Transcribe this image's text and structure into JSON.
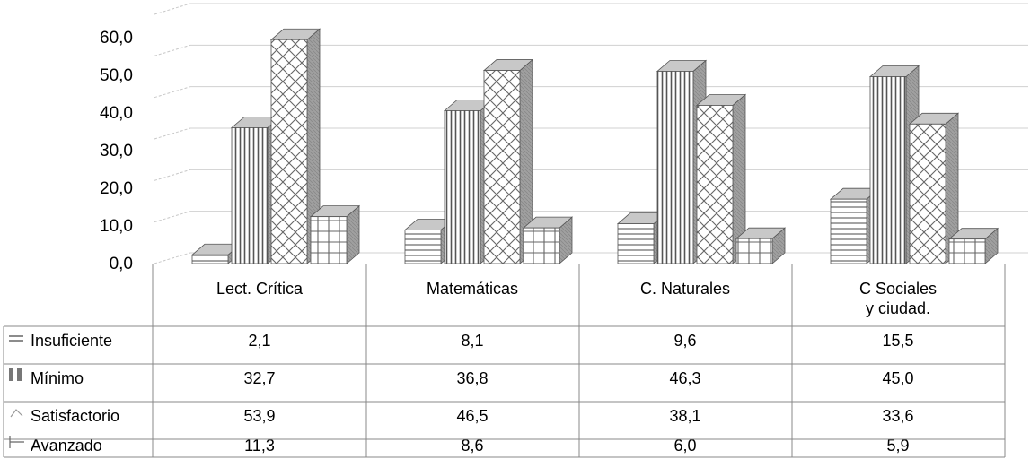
{
  "chart_data": {
    "type": "bar",
    "categories": [
      "Lect. Crítica",
      "Matemáticas",
      "C. Naturales",
      "C Sociales y ciudad."
    ],
    "series": [
      {
        "name": "Insuficiente",
        "values": [
          2.1,
          8.1,
          9.6,
          15.5
        ],
        "pattern": "horizontal-lines"
      },
      {
        "name": "Mínimo",
        "values": [
          32.7,
          36.8,
          46.3,
          45.0
        ],
        "pattern": "vertical-lines"
      },
      {
        "name": "Satisfactorio",
        "values": [
          53.9,
          46.5,
          38.1,
          33.6
        ],
        "pattern": "diagonal-cross"
      },
      {
        "name": "Avanzado",
        "values": [
          11.3,
          8.6,
          6.0,
          5.9
        ],
        "pattern": "grid"
      }
    ],
    "value_labels": [
      [
        "2,1",
        "8,1",
        "9,6",
        "15,5"
      ],
      [
        "32,7",
        "36,8",
        "46,3",
        "45,0"
      ],
      [
        "53,9",
        "46,5",
        "38,1",
        "33,6"
      ],
      [
        "11,3",
        "8,6",
        "6,0",
        "5,9"
      ]
    ],
    "y_ticks": [
      "0,0",
      "10,0",
      "20,0",
      "30,0",
      "40,0",
      "50,0",
      "60,0"
    ],
    "ylim": [
      0,
      60
    ],
    "grid": true,
    "three_d": true,
    "data_table": true,
    "title": "",
    "xlabel": "",
    "ylabel": "",
    "colors": {
      "bar_face": "#ffffff",
      "bar_stroke": "#555555",
      "bar_side": "#9a9a9a",
      "bar_top": "#c8c8c8",
      "grid": "#d0d0d0"
    }
  }
}
